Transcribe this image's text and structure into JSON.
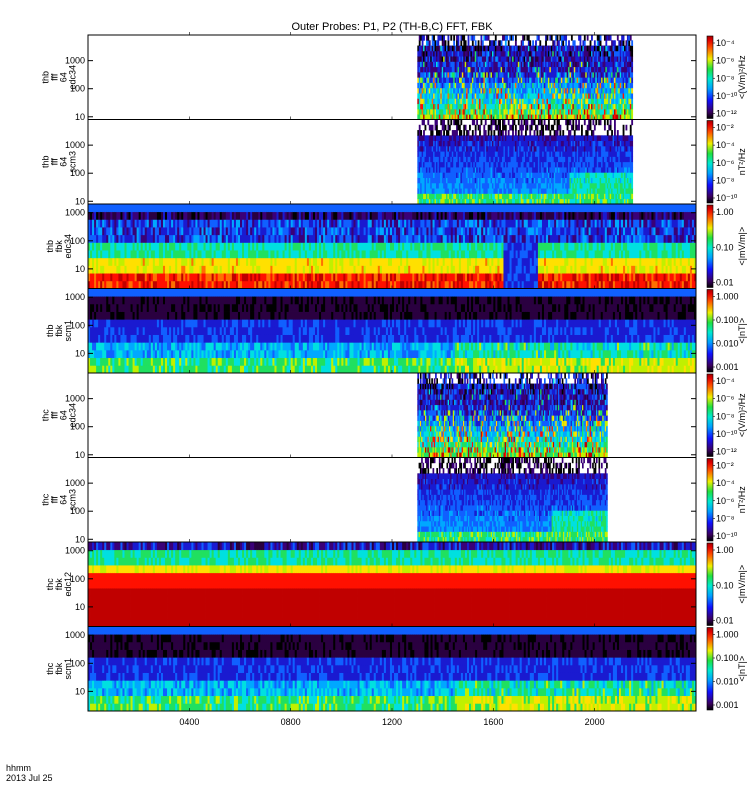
{
  "title": "Outer Probes: P1, P2 (TH-B,C) FFT, FBK",
  "footer": {
    "line1": "hhmm",
    "line2": "2013 Jul 25"
  },
  "chart_data": {
    "type": "heatmap",
    "title": "Outer Probes: P1, P2 (TH-B,C) FFT, FBK",
    "x_ticks": [
      "0400",
      "0800",
      "1200",
      "1600",
      "2000"
    ],
    "x_range_hours": [
      0,
      24
    ],
    "x_tick_hours": [
      4,
      8,
      12,
      16,
      20
    ],
    "y_scale": "log",
    "colormap": "rainbow",
    "panels": [
      {
        "ylabel": [
          "thb",
          "fff",
          "64",
          "edc34"
        ],
        "yticks": [
          "10",
          "100",
          "1000"
        ],
        "ylim": [
          8,
          8192
        ],
        "data_coverage_hours": [
          13.0,
          21.5
        ],
        "colorbar": {
          "ticks": [
            "10⁻⁴",
            "10⁻⁶",
            "10⁻⁸",
            "10⁻¹⁰",
            "10⁻¹²"
          ],
          "label": "<(V/m)²/Hz"
        }
      },
      {
        "ylabel": [
          "thb",
          "fff",
          "64",
          "scm3"
        ],
        "yticks": [
          "10",
          "100",
          "1000"
        ],
        "ylim": [
          8,
          8192
        ],
        "data_coverage_hours": [
          13.0,
          21.5
        ],
        "colorbar": {
          "ticks": [
            "10⁻²",
            "10⁻⁴",
            "10⁻⁶",
            "10⁻⁸",
            "10⁻¹⁰"
          ],
          "label": "nT²/Hz"
        }
      },
      {
        "ylabel": [
          "thb",
          "fbk",
          "edc34"
        ],
        "yticks": [
          "10",
          "100",
          "1000"
        ],
        "ylim": [
          2,
          2048
        ],
        "data_coverage_hours": [
          0,
          24
        ],
        "colorbar": {
          "ticks": [
            "1.00",
            "0.10",
            "0.01"
          ],
          "label": "<|mV/m|>"
        }
      },
      {
        "ylabel": [
          "thb",
          "fbk",
          "scm1"
        ],
        "yticks": [
          "10",
          "100",
          "1000"
        ],
        "ylim": [
          2,
          2048
        ],
        "data_coverage_hours": [
          0,
          24
        ],
        "colorbar": {
          "ticks": [
            "1.000",
            "0.100",
            "0.010",
            "0.001"
          ],
          "label": "<|nT|>"
        }
      },
      {
        "ylabel": [
          "thc",
          "fff",
          "64",
          "edc34"
        ],
        "yticks": [
          "10",
          "100",
          "1000"
        ],
        "ylim": [
          8,
          8192
        ],
        "data_coverage_hours": [
          13.0,
          20.5
        ],
        "colorbar": {
          "ticks": [
            "10⁻⁴",
            "10⁻⁶",
            "10⁻⁸",
            "10⁻¹⁰",
            "10⁻¹²"
          ],
          "label": "<(V/m)²/Hz"
        }
      },
      {
        "ylabel": [
          "thc",
          "fff",
          "64",
          "scm3"
        ],
        "yticks": [
          "10",
          "100",
          "1000"
        ],
        "ylim": [
          8,
          8192
        ],
        "data_coverage_hours": [
          13.0,
          20.5
        ],
        "colorbar": {
          "ticks": [
            "10⁻²",
            "10⁻⁴",
            "10⁻⁶",
            "10⁻⁸",
            "10⁻¹⁰"
          ],
          "label": "nT²/Hz"
        }
      },
      {
        "ylabel": [
          "thc",
          "fbk",
          "edc12"
        ],
        "yticks": [
          "10",
          "100",
          "1000"
        ],
        "ylim": [
          2,
          2048
        ],
        "data_coverage_hours": [
          0,
          24
        ],
        "colorbar": {
          "ticks": [
            "1.00",
            "0.10",
            "0.01"
          ],
          "label": "<|mV/m|>"
        }
      },
      {
        "ylabel": [
          "thc",
          "fbk",
          "scm1"
        ],
        "yticks": [
          "10",
          "100",
          "1000"
        ],
        "ylim": [
          2,
          2048
        ],
        "data_coverage_hours": [
          0,
          24
        ],
        "colorbar": {
          "ticks": [
            "1.000",
            "0.100",
            "0.010",
            "0.001"
          ],
          "label": "<|nT|>"
        }
      }
    ]
  }
}
